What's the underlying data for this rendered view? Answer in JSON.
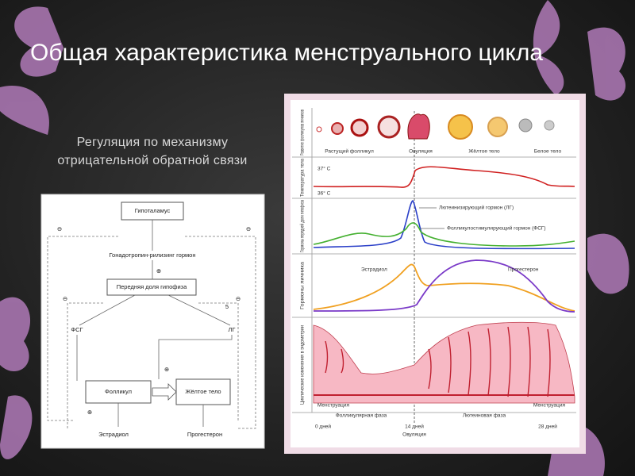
{
  "title": "Общая характеристика менструального цикла",
  "subtitle": "Регуляция по механизму отрицательной обратной связи",
  "feedback_diagram": {
    "nodes": [
      "Гипоталамус",
      "Гонадотропин-рилизинг гормон",
      "Передняя доля гипофиза",
      "ФСГ",
      "ЛГ",
      "Фолликул",
      "Жёлтое тело",
      "Эстрадиол",
      "Прогестерон"
    ],
    "signs": [
      "⊖",
      "⊖",
      "⊕",
      "⊖",
      "⊖",
      "⊕",
      "⊕"
    ],
    "number": "5"
  },
  "cycle_figure": {
    "rows": [
      "Развитие фолликулов яичников",
      "Температура тела",
      "Гормоны передней доли гипофиза",
      "Гормоны яичника",
      "Циклические изменения в эндометрии"
    ],
    "follicle_stages": [
      "Растущий фолликул",
      "Овуляция",
      "Жёлтое тело",
      "Белое тело"
    ],
    "temperatures": [
      "37° С",
      "36° С"
    ],
    "pituitary_labels": [
      "Лютеинизирующий гормон (ЛГ)",
      "Фолликулостимулирующий гормон (ФСГ)"
    ],
    "ovary_labels": [
      "Эстрадиол",
      "Прогестерон"
    ],
    "phases": [
      "Менструация",
      "Фолликулярная фаза",
      "Лютеиновая фаза",
      "Менструация"
    ],
    "days": [
      "0 дней",
      "14 дней",
      "28 дней"
    ],
    "day_note": "Овуляция"
  }
}
